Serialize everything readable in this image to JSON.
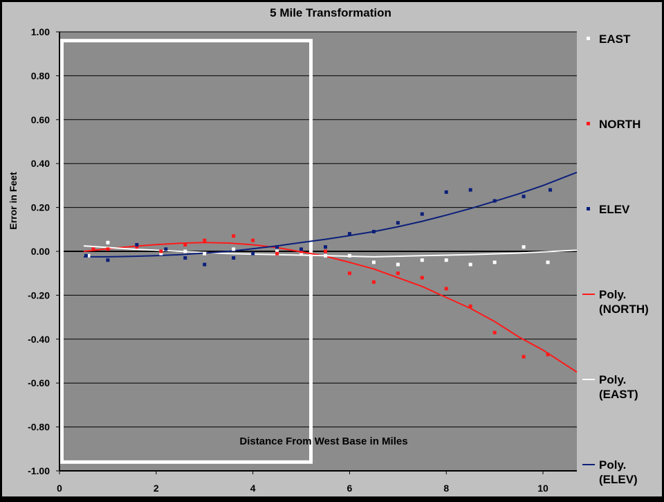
{
  "chart_data": {
    "type": "scatter",
    "title": "5 Mile Transformation",
    "xlabel": "Distance From West Base in Miles",
    "ylabel": "Error in Feet",
    "xlim": [
      0,
      10.7
    ],
    "ylim": [
      -1.0,
      1.0
    ],
    "x_ticks": [
      0,
      2,
      4,
      6,
      8,
      10
    ],
    "y_ticks": [
      1.0,
      0.8,
      0.6,
      0.4,
      0.2,
      0.0,
      -0.2,
      -0.4,
      -0.6,
      -0.8,
      -1.0
    ],
    "x_tick_labels": [
      "0",
      "2",
      "4",
      "6",
      "8",
      "10"
    ],
    "y_tick_labels": [
      "1.00",
      "0.80",
      "0.60",
      "0.40",
      "0.20",
      "0.00",
      "-0.20",
      "-0.40",
      "-0.60",
      "-0.80",
      "-1.00"
    ],
    "grid": "horizontal",
    "legend_position": "right",
    "highlight_box": {
      "x": [
        0.05,
        5.2
      ],
      "y": [
        -0.96,
        0.96
      ],
      "color": "#ffffff"
    },
    "series": [
      {
        "name": "EAST",
        "kind": "points",
        "color": "#ffffff",
        "x": [
          0.6,
          1.0,
          1.6,
          2.1,
          2.6,
          3.0,
          3.6,
          4.0,
          4.5,
          5.0,
          5.5,
          6.0,
          6.5,
          7.0,
          7.5,
          8.0,
          8.5,
          9.0,
          9.6,
          10.1
        ],
        "y": [
          -0.02,
          0.04,
          0.02,
          -0.01,
          0.0,
          -0.01,
          0.01,
          -0.01,
          0.0,
          -0.01,
          -0.02,
          -0.02,
          -0.05,
          -0.06,
          -0.04,
          -0.04,
          -0.06,
          -0.05,
          0.02,
          -0.05
        ]
      },
      {
        "name": "NORTH",
        "kind": "points",
        "color": "#ff1a1a",
        "x": [
          0.7,
          1.0,
          1.6,
          2.1,
          2.6,
          3.0,
          3.6,
          4.0,
          4.5,
          5.0,
          5.5,
          6.0,
          6.5,
          7.0,
          7.5,
          8.0,
          8.5,
          9.0,
          9.6,
          10.1
        ],
        "y": [
          0.01,
          0.01,
          0.02,
          0.0,
          0.03,
          0.05,
          0.07,
          0.05,
          -0.01,
          0.0,
          0.0,
          -0.1,
          -0.14,
          -0.1,
          -0.12,
          -0.17,
          -0.25,
          -0.37,
          -0.48,
          -0.47
        ]
      },
      {
        "name": "ELEV",
        "kind": "points",
        "color": "#0b1f7a",
        "x": [
          0.55,
          1.0,
          1.6,
          2.2,
          2.6,
          3.0,
          3.6,
          4.0,
          4.5,
          5.0,
          5.5,
          6.0,
          6.5,
          7.0,
          7.5,
          8.0,
          8.5,
          9.0,
          9.6,
          10.15
        ],
        "y": [
          -0.02,
          -0.04,
          0.03,
          0.01,
          -0.03,
          -0.06,
          -0.03,
          -0.01,
          0.02,
          0.01,
          0.02,
          0.08,
          0.09,
          0.13,
          0.17,
          0.27,
          0.28,
          0.23,
          0.25,
          0.28
        ]
      },
      {
        "name": "Poly. (NORTH)",
        "kind": "line",
        "color": "#ff1a1a",
        "x": [
          0.5,
          1.0,
          1.5,
          2.0,
          2.5,
          3.0,
          3.5,
          4.0,
          4.5,
          5.0,
          5.5,
          6.0,
          6.5,
          7.0,
          7.5,
          8.0,
          8.5,
          9.0,
          9.5,
          10.0,
          10.7
        ],
        "y": [
          0.0,
          0.012,
          0.022,
          0.031,
          0.037,
          0.04,
          0.038,
          0.03,
          0.017,
          -0.002,
          -0.022,
          -0.05,
          -0.08,
          -0.12,
          -0.16,
          -0.21,
          -0.26,
          -0.32,
          -0.39,
          -0.45,
          -0.55
        ]
      },
      {
        "name": "Poly. (EAST)",
        "kind": "line",
        "color": "#ffffff",
        "x": [
          0.5,
          1.5,
          2.5,
          3.5,
          4.5,
          5.5,
          6.5,
          7.5,
          8.5,
          9.5,
          10.7
        ],
        "y": [
          0.025,
          0.01,
          0.0,
          -0.01,
          -0.015,
          -0.02,
          -0.025,
          -0.02,
          -0.015,
          -0.008,
          0.005
        ]
      },
      {
        "name": "Poly. (ELEV)",
        "kind": "line",
        "color": "#0b1f7a",
        "x": [
          0.5,
          1.0,
          1.5,
          2.0,
          2.5,
          3.0,
          3.5,
          4.0,
          4.5,
          5.0,
          5.5,
          6.0,
          6.5,
          7.0,
          7.5,
          8.0,
          8.5,
          9.0,
          9.5,
          10.0,
          10.7
        ],
        "y": [
          -0.025,
          -0.025,
          -0.023,
          -0.02,
          -0.015,
          -0.008,
          0.0,
          0.012,
          0.025,
          0.04,
          0.055,
          0.072,
          0.09,
          0.112,
          0.137,
          0.165,
          0.195,
          0.228,
          0.262,
          0.3,
          0.36
        ]
      }
    ]
  },
  "legend": {
    "items": [
      {
        "label_lines": [
          "EAST"
        ],
        "color": "#ffffff",
        "marker": "square"
      },
      {
        "label_lines": [
          "NORTH"
        ],
        "color": "#ff1a1a",
        "marker": "square"
      },
      {
        "label_lines": [
          "ELEV"
        ],
        "color": "#0b1f7a",
        "marker": "square"
      },
      {
        "label_lines": [
          "Poly.",
          "(NORTH)"
        ],
        "color": "#ff1a1a",
        "marker": "line"
      },
      {
        "label_lines": [
          "Poly.",
          "(EAST)"
        ],
        "color": "#ffffff",
        "marker": "line"
      },
      {
        "label_lines": [
          "Poly.",
          "(ELEV)"
        ],
        "color": "#0b1f7a",
        "marker": "line"
      }
    ]
  },
  "colors": {
    "chart_area": "#c0c0c0",
    "plot_area": "#8c8c8c",
    "gridline": "#000000",
    "text": "#000000",
    "highlight_box": "#ffffff"
  }
}
